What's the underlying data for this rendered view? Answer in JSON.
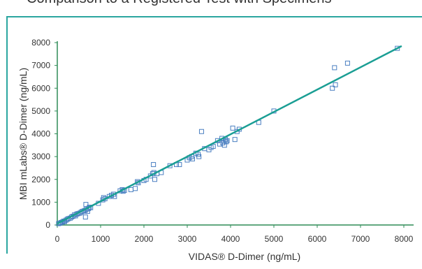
{
  "caption": "Comparison to a Registered Test with Specimens",
  "chart_data": {
    "type": "scatter",
    "title": "",
    "xlabel": "VIDAS® D-Dimer (ng/mL)",
    "ylabel": "MBI mLabs® D-Dimer (ng/mL)",
    "xlim": [
      0,
      8000
    ],
    "ylim": [
      0,
      8000
    ],
    "xticks": [
      0,
      1000,
      2000,
      3000,
      4000,
      5000,
      6000,
      7000,
      8000
    ],
    "yticks": [
      0,
      1000,
      2000,
      3000,
      4000,
      5000,
      6000,
      7000,
      8000
    ],
    "grid": false,
    "colors": {
      "points": "#4a7fc1",
      "fit_line": "#1a9e94",
      "frame": "#2ba6a0"
    },
    "fit_line": {
      "x": [
        0,
        7950
      ],
      "y": [
        60,
        7850
      ]
    },
    "points": [
      [
        30,
        60
      ],
      [
        60,
        80
      ],
      [
        90,
        110
      ],
      [
        120,
        130
      ],
      [
        150,
        170
      ],
      [
        170,
        150
      ],
      [
        200,
        210
      ],
      [
        230,
        250
      ],
      [
        260,
        280
      ],
      [
        300,
        300
      ],
      [
        330,
        350
      ],
      [
        360,
        380
      ],
      [
        400,
        450
      ],
      [
        420,
        400
      ],
      [
        450,
        480
      ],
      [
        480,
        500
      ],
      [
        520,
        520
      ],
      [
        550,
        560
      ],
      [
        580,
        600
      ],
      [
        620,
        620
      ],
      [
        650,
        650
      ],
      [
        660,
        900
      ],
      [
        680,
        700
      ],
      [
        700,
        600
      ],
      [
        720,
        720
      ],
      [
        740,
        780
      ],
      [
        770,
        760
      ],
      [
        650,
        350
      ],
      [
        950,
        950
      ],
      [
        1050,
        1100
      ],
      [
        1070,
        1200
      ],
      [
        1100,
        1150
      ],
      [
        1200,
        1250
      ],
      [
        1250,
        1300
      ],
      [
        1300,
        1350
      ],
      [
        1320,
        1250
      ],
      [
        1450,
        1500
      ],
      [
        1500,
        1550
      ],
      [
        1520,
        1480
      ],
      [
        1550,
        1520
      ],
      [
        1700,
        1550
      ],
      [
        1800,
        1600
      ],
      [
        1850,
        1900
      ],
      [
        1870,
        1850
      ],
      [
        2000,
        1950
      ],
      [
        2050,
        2000
      ],
      [
        2150,
        2150
      ],
      [
        2200,
        2250
      ],
      [
        2220,
        2650
      ],
      [
        2230,
        2300
      ],
      [
        2250,
        2000
      ],
      [
        2300,
        2250
      ],
      [
        2400,
        2300
      ],
      [
        2600,
        2600
      ],
      [
        2750,
        2650
      ],
      [
        2820,
        2650
      ],
      [
        3000,
        2850
      ],
      [
        3050,
        2950
      ],
      [
        3100,
        3000
      ],
      [
        3120,
        2900
      ],
      [
        3200,
        3150
      ],
      [
        3250,
        3100
      ],
      [
        3270,
        3000
      ],
      [
        3330,
        4100
      ],
      [
        3400,
        3350
      ],
      [
        3500,
        3300
      ],
      [
        3550,
        3400
      ],
      [
        3600,
        3450
      ],
      [
        3700,
        3700
      ],
      [
        3750,
        3550
      ],
      [
        3800,
        3800
      ],
      [
        3820,
        3600
      ],
      [
        3850,
        3700
      ],
      [
        3860,
        3500
      ],
      [
        3880,
        3750
      ],
      [
        3900,
        3650
      ],
      [
        3920,
        3700
      ],
      [
        4050,
        4250
      ],
      [
        4100,
        3750
      ],
      [
        4150,
        4100
      ],
      [
        4200,
        4200
      ],
      [
        4650,
        4500
      ],
      [
        5000,
        5000
      ],
      [
        6350,
        6000
      ],
      [
        6400,
        6900
      ],
      [
        6420,
        6150
      ],
      [
        6700,
        7100
      ],
      [
        7850,
        7750
      ]
    ]
  }
}
